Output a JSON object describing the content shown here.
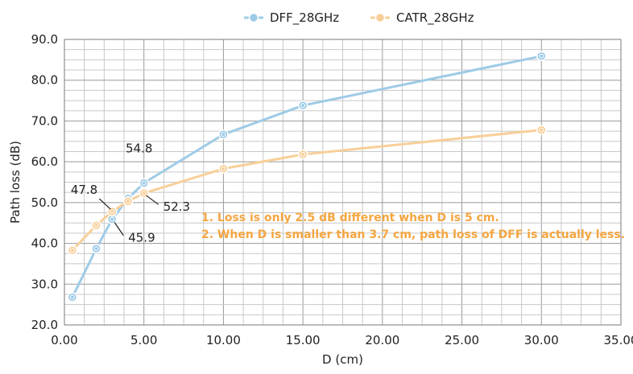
{
  "chart_data": {
    "type": "line",
    "title": "",
    "xlabel": "D (cm)",
    "ylabel": "Path loss (dB)",
    "xlim": [
      0,
      35
    ],
    "ylim": [
      20,
      90
    ],
    "x_ticks": [
      "0.00",
      "5.00",
      "10.00",
      "15.00",
      "20.00",
      "25.00",
      "30.00",
      "35.00"
    ],
    "y_ticks": [
      "20.0",
      "30.0",
      "40.0",
      "50.0",
      "60.0",
      "70.0",
      "80.0",
      "90.0"
    ],
    "grid": true,
    "legend_position": "top",
    "series": [
      {
        "name": "DFF_28GHz",
        "color": "#9ecbe6",
        "x": [
          0.5,
          2.0,
          3.0,
          4.0,
          5.0,
          10.0,
          15.0,
          30.0
        ],
        "y": [
          26.8,
          38.7,
          45.9,
          51.0,
          54.8,
          66.7,
          73.8,
          85.9
        ]
      },
      {
        "name": "CATR_28GHz",
        "color": "#f7cf99",
        "x": [
          0.5,
          2.0,
          3.0,
          4.0,
          5.0,
          10.0,
          15.0,
          30.0
        ],
        "y": [
          38.3,
          44.4,
          47.8,
          50.3,
          52.3,
          58.3,
          61.8,
          67.8
        ]
      }
    ],
    "data_labels": [
      {
        "text": "54.8",
        "series": "DFF_28GHz",
        "x": 5.0,
        "y": 54.8
      },
      {
        "text": "47.8",
        "series": "CATR_28GHz",
        "x": 3.0,
        "y": 47.8
      },
      {
        "text": "52.3",
        "series": "CATR_28GHz",
        "x": 5.0,
        "y": 52.3
      },
      {
        "text": "45.9",
        "series": "DFF_28GHz",
        "x": 3.0,
        "y": 45.9
      }
    ],
    "annotations": [
      "1. Loss is only 2.5 dB different when D is 5 cm.",
      "2. When D is smaller than 3.7 cm, path loss of DFF is actually less."
    ],
    "annotation_color": "#f5a641"
  }
}
